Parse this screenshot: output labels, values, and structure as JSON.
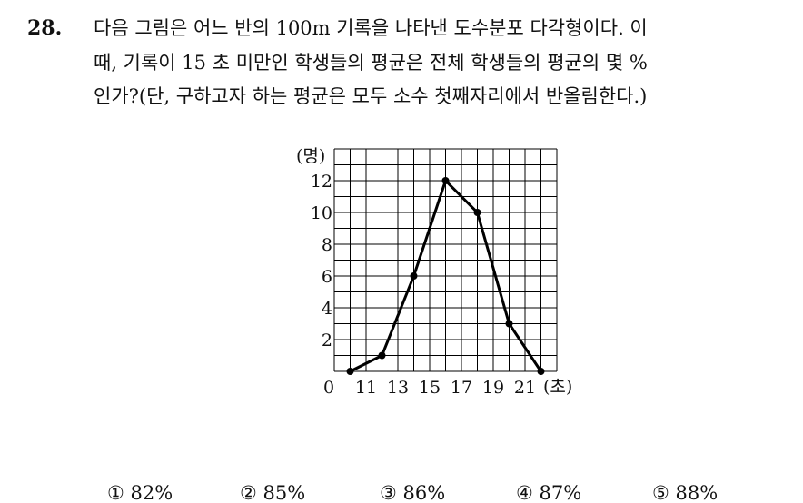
{
  "problem": {
    "number": "28.",
    "lines": [
      "다음 그림은 어느 반의 100m 기록을 나타낸 도수분포 다각형이다. 이",
      "때, 기록이 15 초 미만인 학생들의 평균은 전체 학생들의 평균의 몇 %",
      "인가?(단, 구하고자 하는 평균은 모두 소수 첫째자리에서 반올림한다.)"
    ],
    "choices": [
      "① 82%",
      "② 85%",
      "③ 86%",
      "④ 87%",
      "⑤ 88%"
    ]
  },
  "chart_data": {
    "type": "line",
    "y_label": "(명)",
    "x_label": "(초)",
    "x": [
      10,
      12,
      14,
      16,
      18,
      20,
      22
    ],
    "values": [
      0,
      1,
      6,
      12,
      10,
      3,
      0
    ],
    "color": "#000000",
    "xlim": [
      9,
      23
    ],
    "ylim": [
      0,
      14
    ],
    "xticks": [
      11,
      13,
      15,
      17,
      19,
      21
    ],
    "yticks": [
      0,
      2,
      4,
      6,
      8,
      10,
      12
    ],
    "xgrid": [
      9,
      10,
      11,
      12,
      13,
      14,
      15,
      16,
      17,
      18,
      19,
      20,
      21,
      22,
      23
    ],
    "ygrid": [
      0,
      1,
      2,
      3,
      4,
      5,
      6,
      7,
      8,
      9,
      10,
      11,
      12,
      13,
      14
    ]
  }
}
